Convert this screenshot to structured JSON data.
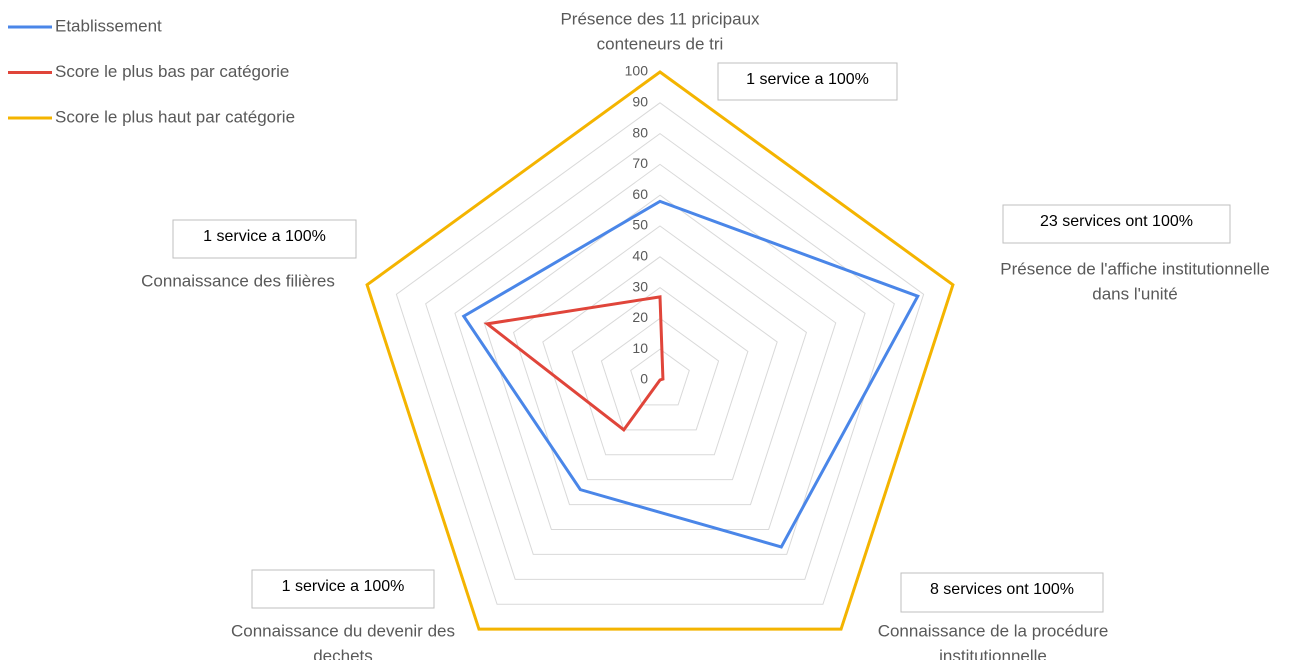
{
  "chart_data": {
    "type": "radar",
    "categories": [
      [
        "Présence des 11 pricipaux",
        "conteneurs de tri"
      ],
      [
        "Présence de l'affiche institutionnelle",
        "dans l'unité"
      ],
      [
        "Connaissance de la procédure",
        "institutionnelle"
      ],
      [
        "Connaissance du devenir des",
        "dechets"
      ],
      [
        "Connaissance des filières"
      ]
    ],
    "series": [
      {
        "name": "Etablissement",
        "color": "#4a86e8",
        "values": [
          58,
          88,
          67,
          44,
          67
        ]
      },
      {
        "name": "Score le plus bas par catégorie",
        "color": "#e0453a",
        "values": [
          27,
          1,
          0,
          20,
          59
        ]
      },
      {
        "name": "Score le plus haut par catégorie",
        "color": "#f4b400",
        "values": [
          100,
          100,
          100,
          100,
          100
        ]
      }
    ],
    "ylim": [
      0,
      100
    ],
    "yticks": [
      0,
      10,
      20,
      30,
      40,
      50,
      60,
      70,
      80,
      90,
      100
    ],
    "grid": true,
    "legend": "top-left",
    "annotations": [
      "1 service a 100%",
      "23 services ont 100%",
      "8 services ont 100%",
      "1 service a 100%",
      "1 service a 100%"
    ]
  }
}
